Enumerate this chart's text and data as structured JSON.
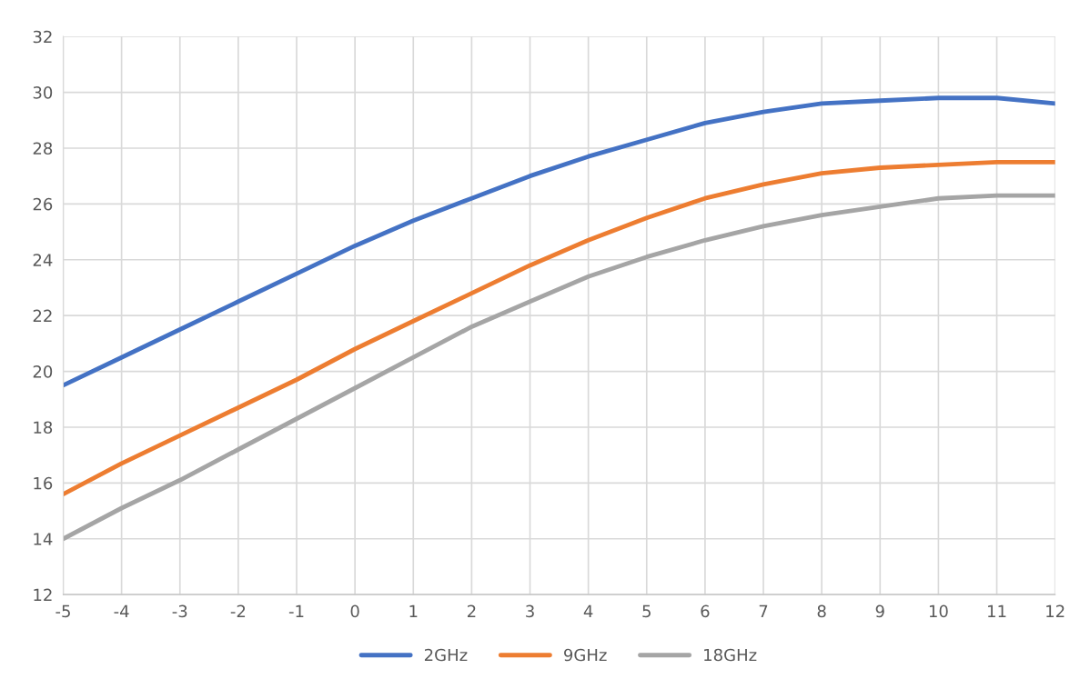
{
  "chart_data": {
    "type": "line",
    "x": [
      -5,
      -4,
      -3,
      -2,
      -1,
      0,
      1,
      2,
      3,
      4,
      5,
      6,
      7,
      8,
      9,
      10,
      11,
      12
    ],
    "series": [
      {
        "name": "2GHz",
        "color": "#4472c4",
        "values": [
          19.5,
          20.5,
          21.5,
          22.5,
          23.5,
          24.5,
          25.4,
          26.2,
          27.0,
          27.7,
          28.3,
          28.9,
          29.3,
          29.6,
          29.7,
          29.8,
          29.8,
          29.6
        ]
      },
      {
        "name": "9GHz",
        "color": "#ed7d31",
        "values": [
          15.6,
          16.7,
          17.7,
          18.7,
          19.7,
          20.8,
          21.8,
          22.8,
          23.8,
          24.7,
          25.5,
          26.2,
          26.7,
          27.1,
          27.3,
          27.4,
          27.5,
          27.5
        ]
      },
      {
        "name": "18GHz",
        "color": "#a5a5a5",
        "values": [
          14.0,
          15.1,
          16.1,
          17.2,
          18.3,
          19.4,
          20.5,
          21.6,
          22.5,
          23.4,
          24.1,
          24.7,
          25.2,
          25.6,
          25.9,
          26.2,
          26.3,
          26.3
        ]
      }
    ],
    "xlim": [
      -5,
      12
    ],
    "xticks": [
      -5,
      -4,
      -3,
      -2,
      -1,
      0,
      1,
      2,
      3,
      4,
      5,
      6,
      7,
      8,
      9,
      10,
      11,
      12
    ],
    "ylim": [
      12,
      32
    ],
    "yticks": [
      12,
      14,
      16,
      18,
      20,
      22,
      24,
      26,
      28,
      30,
      32
    ],
    "grid": true,
    "legend": "bottom",
    "marker": "none",
    "line_style": "solid"
  }
}
